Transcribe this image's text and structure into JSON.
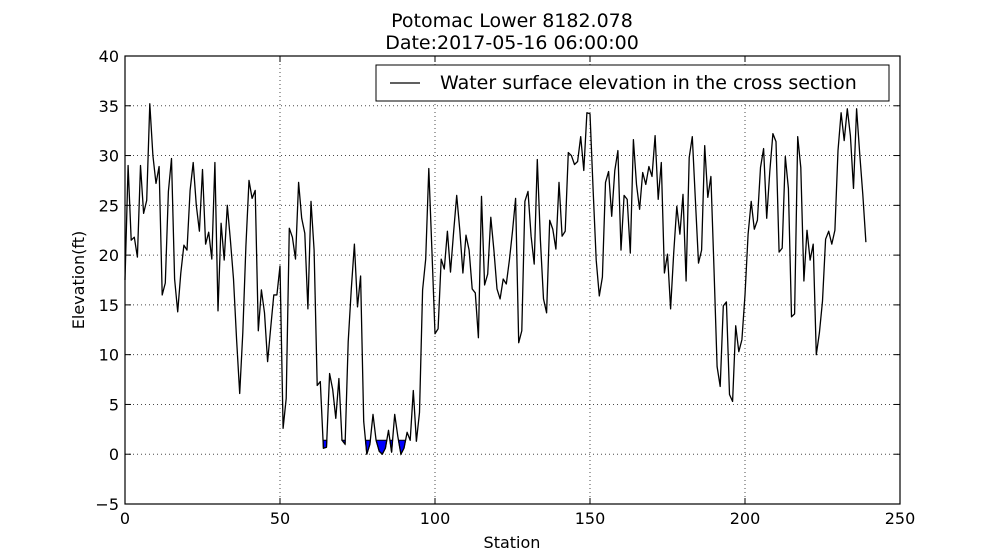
{
  "chart_data": {
    "type": "line",
    "title": "Potomac Lower 8182.078",
    "subtitle": "Date:2017-05-16 06:00:00",
    "xlabel": "Station",
    "ylabel": "Elevation(ft)",
    "xlim": [
      0,
      250
    ],
    "ylim": [
      -5,
      40
    ],
    "xticks": [
      0,
      50,
      100,
      150,
      200,
      250
    ],
    "yticks": [
      -5,
      0,
      5,
      10,
      15,
      20,
      25,
      30,
      35,
      40
    ],
    "grid": true,
    "legend": {
      "position": "top-right",
      "entries": [
        "Water surface elevation in the cross section"
      ]
    },
    "colors": {
      "line": "#000000",
      "water": "#0000ff"
    },
    "water_surface_elevation": 1.4,
    "series": [
      {
        "name": "Water surface elevation in the cross section",
        "x": [
          0,
          1,
          2,
          3,
          4,
          5,
          6,
          7,
          8,
          9,
          10,
          11,
          12,
          13,
          14,
          15,
          16,
          17,
          18,
          19,
          20,
          21,
          22,
          23,
          24,
          25,
          26,
          27,
          28,
          29,
          30,
          31,
          32,
          33,
          34,
          35,
          36,
          37,
          38,
          39,
          40,
          41,
          42,
          43,
          44,
          45,
          46,
          47,
          48,
          49,
          50,
          51,
          52,
          53,
          54,
          55,
          56,
          57,
          58,
          59,
          60,
          61,
          62,
          63,
          64,
          65,
          66,
          67,
          68,
          69,
          70,
          71,
          72,
          73,
          74,
          75,
          76,
          77,
          78,
          79,
          80,
          81,
          82,
          83,
          84,
          85,
          86,
          87,
          88,
          89,
          90,
          91,
          92,
          93,
          94,
          95,
          96,
          97,
          98,
          99,
          100,
          101,
          102,
          103,
          104,
          105,
          106,
          107,
          108,
          109,
          110,
          111,
          112,
          113,
          114,
          115,
          116,
          117,
          118,
          119,
          120,
          121,
          122,
          123,
          124,
          125,
          126,
          127,
          128,
          129,
          130,
          131,
          132,
          133,
          134,
          135,
          136,
          137,
          138,
          139,
          140,
          141,
          142,
          143,
          144,
          145,
          146,
          147,
          148,
          149,
          150,
          151,
          152,
          153,
          154,
          155,
          156,
          157,
          158,
          159,
          160,
          161,
          162,
          163,
          164,
          165,
          166,
          167,
          168,
          169,
          170,
          171,
          172,
          173,
          174,
          175,
          176,
          177,
          178,
          179,
          180,
          181,
          182,
          183,
          184,
          185,
          186,
          187,
          188,
          189,
          190,
          191,
          192,
          193,
          194,
          195,
          196,
          197,
          198,
          199,
          200,
          201,
          202,
          203,
          204,
          205,
          206,
          207,
          208,
          209,
          210,
          211,
          212,
          213,
          214,
          215,
          216,
          217,
          218,
          219,
          220,
          221,
          222,
          223,
          224,
          225,
          226,
          227,
          228,
          229,
          230,
          231,
          232,
          233,
          234,
          235,
          236,
          237,
          238,
          239
        ],
        "y": [
          17.5,
          29,
          21.5,
          21.8,
          19.8,
          29,
          24.2,
          25.5,
          35.2,
          30,
          27.2,
          28.9,
          16,
          17.2,
          26.4,
          29.7,
          17.6,
          14.3,
          18.2,
          21,
          20.5,
          26.5,
          29.3,
          25,
          22.4,
          28.6,
          21.1,
          22.3,
          19.6,
          29.3,
          14.4,
          23.2,
          19.5,
          25,
          21.5,
          17.6,
          11.5,
          6.1,
          12.2,
          20.9,
          27.5,
          25.7,
          26.5,
          12.4,
          16.5,
          14.2,
          9.3,
          12.7,
          16,
          16,
          18.9,
          2.6,
          5.6,
          22.7,
          21.8,
          19.6,
          27.3,
          23.7,
          22.2,
          14.6,
          25.4,
          20.5,
          6.9,
          7.3,
          0.6,
          0.7,
          8.1,
          6.5,
          3.6,
          7.6,
          1.4,
          1,
          11.3,
          16.6,
          21.1,
          14.8,
          17.9,
          3.3,
          0,
          1,
          4,
          1.4,
          0.3,
          0,
          0.6,
          2.4,
          0.2,
          4,
          1.8,
          0,
          0.6,
          2.2,
          1.4,
          6.4,
          1.3,
          4.2,
          16.5,
          19.6,
          28.7,
          20.5,
          12.1,
          12.6,
          19.6,
          18.6,
          22.4,
          18.3,
          22.3,
          26,
          22.5,
          18.2,
          22,
          20.5,
          16.6,
          16.2,
          11.7,
          25.9,
          17,
          18.1,
          23.8,
          20.5,
          16.6,
          15.6,
          17.6,
          17.1,
          19.5,
          22.4,
          25.7,
          11.2,
          12.4,
          25.4,
          26.4,
          21.9,
          19.1,
          29.6,
          21.5,
          15.6,
          14.2,
          23.5,
          22.6,
          20.6,
          27.3,
          21.9,
          22.4,
          30.3,
          30,
          29.1,
          29.4,
          31.9,
          28.5,
          34.3,
          34.2,
          26.6,
          19.5,
          15.9,
          17.8,
          27.3,
          28.4,
          23.9,
          28.5,
          30.5,
          20.5,
          26,
          25.6,
          20.2,
          31.6,
          27.1,
          24.6,
          28.3,
          27.1,
          28.9,
          27.9,
          32,
          25.6,
          29.3,
          18.2,
          20.1,
          14.6,
          20.2,
          24.9,
          22.1,
          26.1,
          17.4,
          29.8,
          31.9,
          25.5,
          19.2,
          20.5,
          31,
          25.8,
          27.9,
          18.6,
          8.8,
          6.8,
          14.9,
          15.3,
          6,
          5.3,
          12.9,
          10.3,
          11.5,
          16,
          22.1,
          25.4,
          22.6,
          23.5,
          28.8,
          30.7,
          23.7,
          28.4,
          32.2,
          31.4,
          20.3,
          20.7,
          29.9,
          26.7,
          13.8,
          14.1,
          31.9,
          28.8,
          17.4,
          22.5,
          19.5,
          21.1,
          10,
          12.2,
          15.4,
          21.6,
          22.4,
          21.1,
          22.5,
          30.5,
          34.3,
          31.5,
          34.7,
          32,
          26.7,
          34.7,
          30.2,
          26.1,
          21.3
        ]
      }
    ]
  }
}
